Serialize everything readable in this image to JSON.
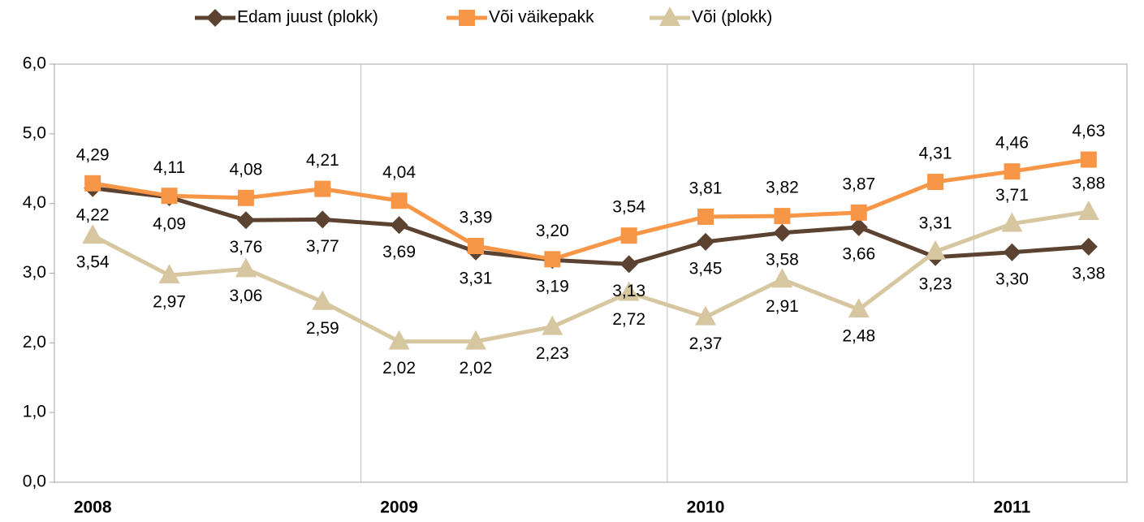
{
  "chart_data": {
    "type": "line",
    "categories": [
      "2008",
      null,
      null,
      null,
      "2009",
      null,
      null,
      null,
      "2010",
      null,
      null,
      null,
      "2011",
      null
    ],
    "series": [
      {
        "name": "Edam juust (plokk)",
        "color": "#5c4331",
        "marker": "diamond",
        "values": [
          4.22,
          4.09,
          3.76,
          3.77,
          3.69,
          3.31,
          3.19,
          3.13,
          3.45,
          3.58,
          3.66,
          3.23,
          3.3,
          3.38
        ],
        "value_labels": [
          "4,22",
          "4,09",
          "3,76",
          "3,77",
          "3,69",
          "3,31",
          "3,19",
          "3,13",
          "3,45",
          "3,58",
          "3,66",
          "3,23",
          "3,30",
          "3,38"
        ]
      },
      {
        "name": "Või väikepakk",
        "color": "#f79646",
        "marker": "square",
        "values": [
          4.29,
          4.11,
          4.08,
          4.21,
          4.04,
          3.39,
          3.2,
          3.54,
          3.81,
          3.82,
          3.87,
          4.31,
          4.46,
          4.63
        ],
        "value_labels": [
          "4,29",
          "4,11",
          "4,08",
          "4,21",
          "4,04",
          "3,39",
          "3,20",
          "3,54",
          "3,81",
          "3,82",
          "3,87",
          "4,31",
          "4,46",
          "4,63"
        ]
      },
      {
        "name": "Või (plokk)",
        "color": "#d6c7a1",
        "marker": "triangle",
        "values": [
          3.54,
          2.97,
          3.06,
          2.59,
          2.02,
          2.02,
          2.23,
          2.72,
          2.37,
          2.91,
          2.48,
          3.31,
          3.71,
          3.88
        ],
        "value_labels": [
          "3,54",
          "2,97",
          "3,06",
          "2,59",
          "2,02",
          "2,02",
          "2,23",
          "2,72",
          "2,37",
          "2,91",
          "2,48",
          "3,31",
          "3,71",
          "3,88"
        ]
      }
    ],
    "ylim": [
      0,
      6
    ],
    "yticks": [
      {
        "value": 0,
        "label": "0,0"
      },
      {
        "value": 1,
        "label": "1,0"
      },
      {
        "value": 2,
        "label": "2,0"
      },
      {
        "value": 3,
        "label": "3,0"
      },
      {
        "value": 4,
        "label": "4,0"
      },
      {
        "value": 5,
        "label": "5,0"
      },
      {
        "value": 6,
        "label": "6,0"
      }
    ],
    "legend": "top"
  }
}
